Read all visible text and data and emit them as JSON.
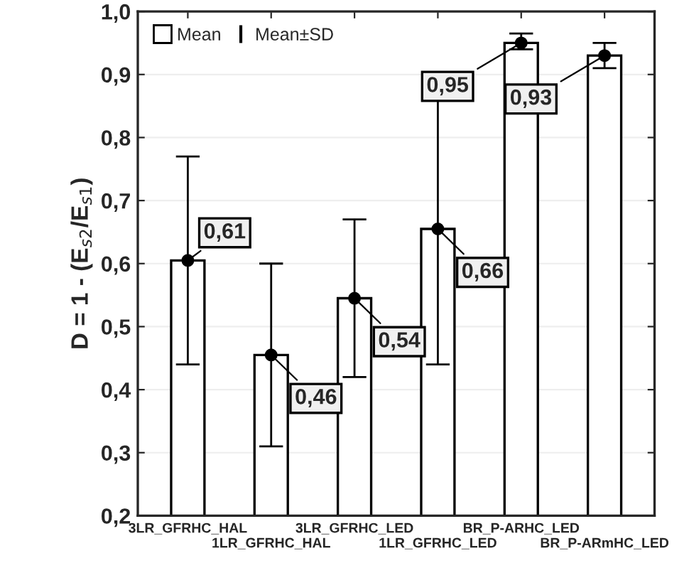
{
  "chart_data": {
    "type": "bar",
    "ylabel": "D = 1 - (E$_{s2}$/E$_{s1}$)",
    "categories": [
      "3LR_GFRHC_HAL",
      "1LR_GFRHC_HAL",
      "3LR_GFRHC_LED",
      "1LR_GFRHC_LED",
      "BR_P-ARHC_LED",
      "BR_P-ARmHC_LED"
    ],
    "series": [
      {
        "color": "#ffffff",
        "values": [
          0.605,
          0.455,
          0.545,
          0.655,
          0.95,
          0.93
        ],
        "value_labels": [
          "0,61",
          "0,46",
          "0,54",
          "0,66",
          "0,95",
          "0,93"
        ]
      },
      {
        "type": "scatter",
        "name": "Mean",
        "color": "#000000",
        "values": [
          0.605,
          0.455,
          0.545,
          0.655,
          0.95,
          0.93
        ],
        "errors": [
          [
            0.44,
            0.77
          ],
          [
            0.31,
            0.6
          ],
          [
            0.42,
            0.67
          ],
          [
            0.44,
            0.87
          ],
          [
            0.94,
            0.965
          ],
          [
            0.91,
            0.95
          ]
        ]
      }
    ],
    "annotations": [
      "Mean±SD"
    ],
    "ylim": [
      0.2,
      1.0
    ],
    "yticks": [
      {
        "value": 0.2,
        "label": "0,2"
      },
      {
        "value": 0.3,
        "label": "0,3"
      },
      {
        "value": 0.4,
        "label": "0,4"
      },
      {
        "value": 0.5,
        "label": "0,5"
      },
      {
        "value": 0.6,
        "label": "0,6"
      },
      {
        "value": 0.7,
        "label": "0,7"
      },
      {
        "value": 0.8,
        "label": "0,8"
      },
      {
        "value": 0.9,
        "label": "0,9"
      },
      {
        "value": 1.0,
        "label": "1,0"
      }
    ],
    "grid": "y",
    "legend": "top left",
    "marker": "circle"
  }
}
